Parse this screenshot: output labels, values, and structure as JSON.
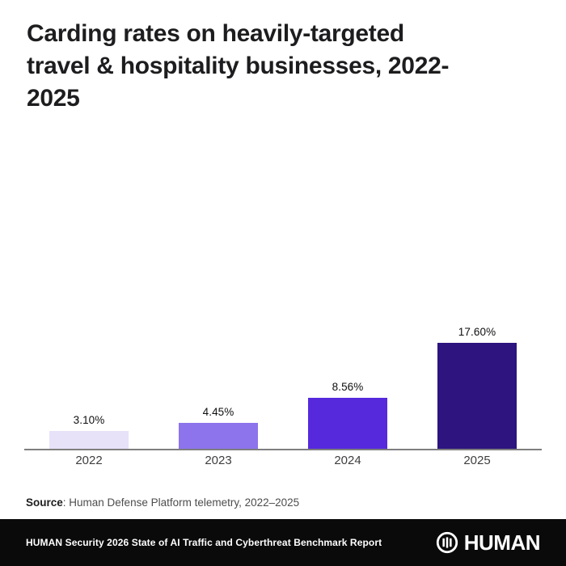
{
  "title": {
    "full": "Carding rates on heavily-targeted travel & hospitality businesses, 2022-2025",
    "lines": [
      "Carding rates on heavily-targeted",
      "travel & hospitality businesses, 2022-",
      "2025"
    ]
  },
  "chart_data": {
    "type": "bar",
    "title": "Carding rates on heavily-targeted travel & hospitality businesses, 2022-2025",
    "categories": [
      "2022",
      "2023",
      "2024",
      "2025"
    ],
    "values": [
      3.1,
      4.45,
      8.56,
      17.6
    ],
    "value_labels": [
      "3.10%",
      "4.45%",
      "8.56%",
      "17.60%"
    ],
    "bar_colors": [
      "#e7e2f8",
      "#8d73ec",
      "#5629dd",
      "#2d147f"
    ],
    "xlabel": "",
    "ylabel": "",
    "ylim": [
      0,
      18.5
    ],
    "grid": false,
    "legend": null,
    "unit": "%"
  },
  "source": {
    "label": "Source",
    "text": ": Human Defense Platform telemetry, 2022–2025"
  },
  "footer": {
    "report_title": "HUMAN Security 2026 State of AI Traffic and Cyberthreat Benchmark Report",
    "brand_name": "HUMAN",
    "logo_icon": "human-ring-bars-icon",
    "background_color": "#0a0a0a",
    "text_color": "#ffffff"
  }
}
